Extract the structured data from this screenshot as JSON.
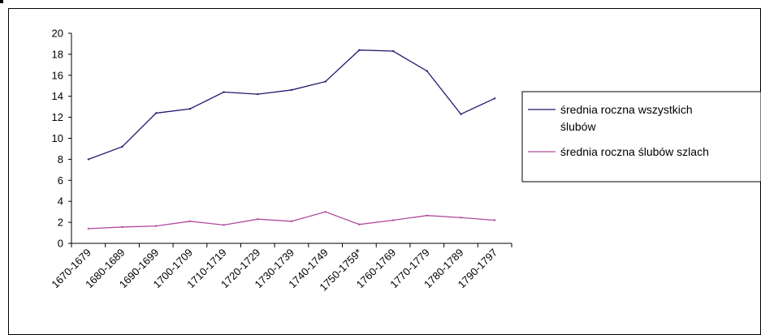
{
  "chart_data": {
    "type": "line",
    "title": "",
    "xlabel": "",
    "ylabel": "",
    "ylim": [
      0,
      20
    ],
    "yticks": [
      0,
      2,
      4,
      6,
      8,
      10,
      12,
      14,
      16,
      18,
      20
    ],
    "grid": false,
    "legend_position": "right",
    "categories": [
      "1670-1679",
      "1680-1689",
      "1690-1699",
      "1700-1709",
      "1710-1719",
      "1720-1729",
      "1730-1739",
      "1740-1749",
      "1750-1759*",
      "1760-1769",
      "1770-1779",
      "1780-1789",
      "1790-1797"
    ],
    "series": [
      {
        "name": "średnia roczna wszystkich ślubów",
        "legend_lines": [
          "średnia roczna wszystkich",
          "ślubów"
        ],
        "color": "#1f1a6e",
        "values": [
          8.0,
          9.2,
          12.4,
          12.8,
          14.4,
          14.2,
          14.6,
          15.4,
          18.4,
          18.3,
          16.4,
          12.3,
          13.8
        ]
      },
      {
        "name": "średnia roczna ślubów szlach",
        "legend_lines": [
          "średnia roczna ślubów szlach"
        ],
        "color": "#b04a9a",
        "values": [
          1.4,
          1.55,
          1.65,
          2.1,
          1.75,
          2.3,
          2.1,
          3.0,
          1.8,
          2.2,
          2.65,
          2.45,
          2.2
        ]
      }
    ]
  }
}
